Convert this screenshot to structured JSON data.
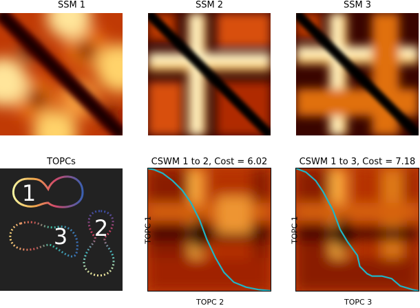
{
  "chart_data": [
    {
      "type": "heatmap",
      "title": "SSM 1",
      "xlabel": "",
      "ylabel": "",
      "colormap": "afmhot",
      "grid": false
    },
    {
      "type": "heatmap",
      "title": "SSM 2",
      "xlabel": "",
      "ylabel": "",
      "colormap": "afmhot",
      "grid": false
    },
    {
      "type": "heatmap",
      "title": "SSM 3",
      "xlabel": "",
      "ylabel": "",
      "colormap": "afmhot",
      "grid": false
    },
    {
      "type": "scatter",
      "title": "TOPCs",
      "labels": [
        "1",
        "2",
        "3"
      ],
      "background": "#222222"
    },
    {
      "type": "heatmap",
      "title": "CSWM 1 to 2, Cost = 6.02",
      "xlabel": "TOPC 2",
      "ylabel": "TOPC 1",
      "path_color": "#20b5c6",
      "warping_path": {
        "x": [
          0,
          0.05,
          0.12,
          0.2,
          0.28,
          0.35,
          0.42,
          0.48,
          0.55,
          0.62,
          0.7,
          0.8,
          0.9,
          1.0
        ],
        "y": [
          1.0,
          0.99,
          0.96,
          0.9,
          0.82,
          0.72,
          0.58,
          0.42,
          0.27,
          0.15,
          0.07,
          0.03,
          0.01,
          0
        ]
      }
    },
    {
      "type": "heatmap",
      "title": "CSWM 1 to 3, Cost = 7.18",
      "xlabel": "TOPC 3",
      "ylabel": "TOPC 1",
      "path_color": "#20b5c6",
      "warping_path": {
        "x": [
          0,
          0.08,
          0.16,
          0.22,
          0.3,
          0.36,
          0.42,
          0.5,
          0.52,
          0.58,
          0.62,
          0.7,
          0.78,
          0.85,
          0.95,
          1.0
        ],
        "y": [
          1.0,
          0.97,
          0.9,
          0.81,
          0.66,
          0.5,
          0.4,
          0.29,
          0.2,
          0.14,
          0.12,
          0.12,
          0.1,
          0.04,
          0.01,
          0
        ]
      }
    }
  ]
}
